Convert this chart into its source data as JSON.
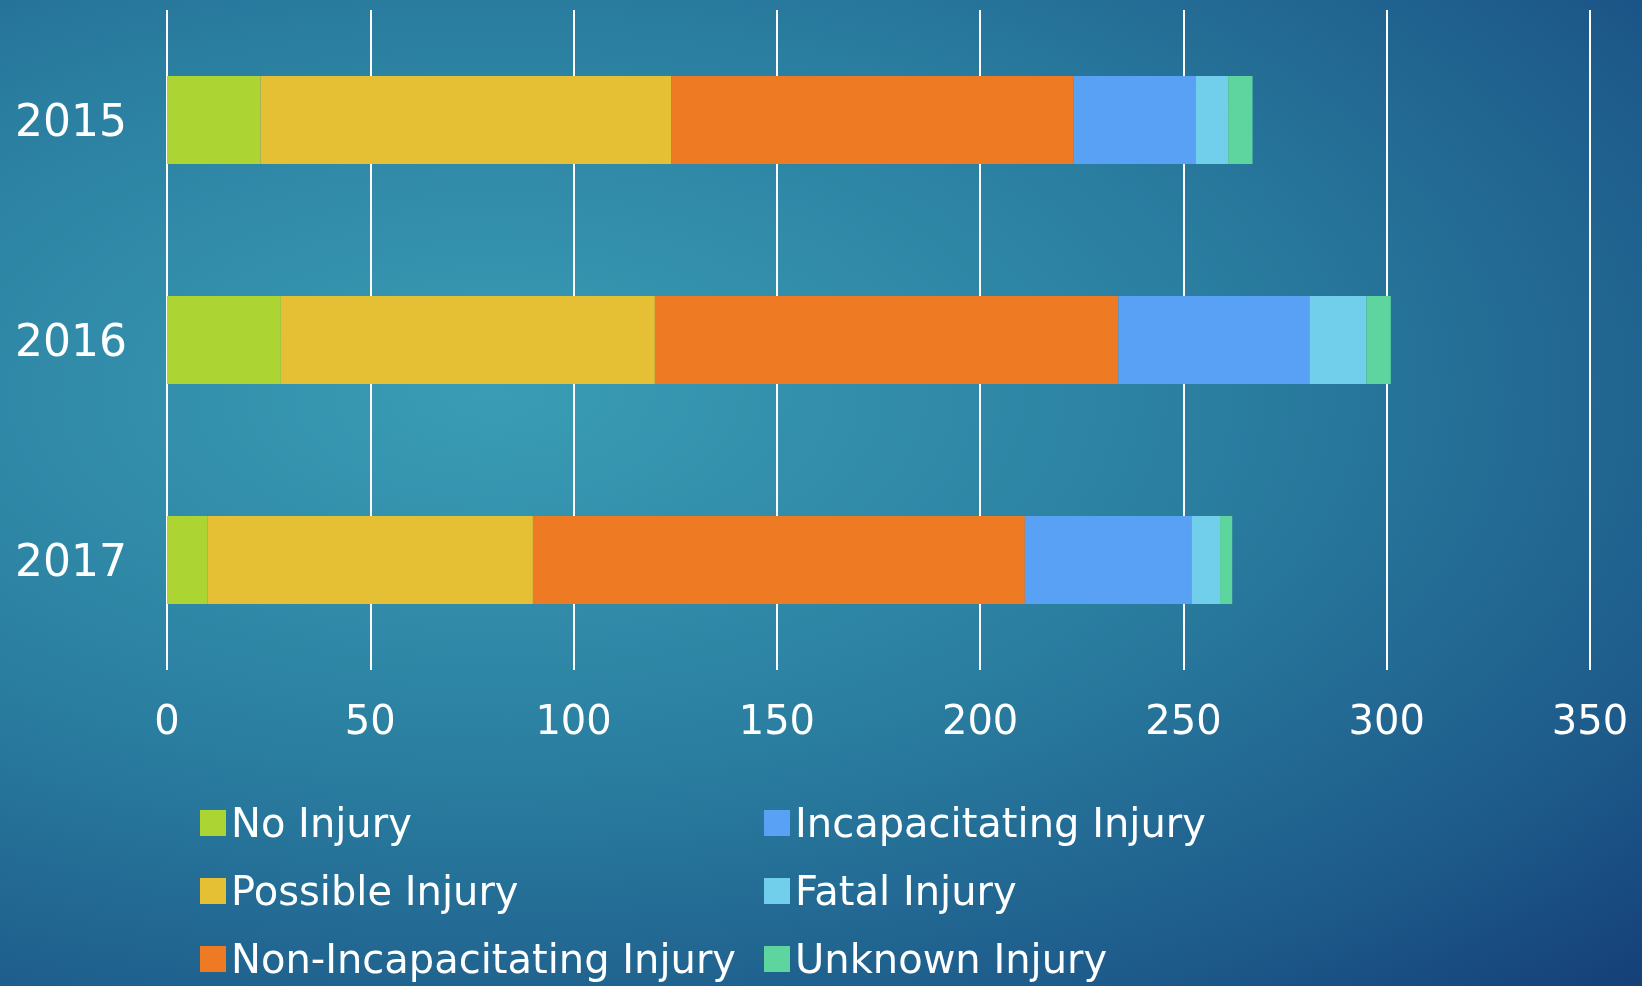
{
  "chart_data": {
    "type": "bar",
    "orientation": "horizontal",
    "stacked": true,
    "categories": [
      "2015",
      "2016",
      "2017"
    ],
    "series": [
      {
        "name": "No Injury",
        "color": "#acd433",
        "values": [
          23,
          28,
          10
        ]
      },
      {
        "name": "Possible Injury",
        "color": "#e5c035",
        "values": [
          101,
          92,
          80
        ]
      },
      {
        "name": "Non-Incapacitating Injury",
        "color": "#ee7b24",
        "values": [
          99,
          114,
          121
        ]
      },
      {
        "name": "Incapacitating Injury",
        "color": "#58a1f5",
        "values": [
          30,
          47,
          41
        ]
      },
      {
        "name": "Fatal Injury",
        "color": "#72cfec",
        "values": [
          8,
          14,
          7
        ]
      },
      {
        "name": "Unknown Injury",
        "color": "#5ed59e",
        "values": [
          6,
          6,
          3
        ]
      }
    ],
    "xlim": [
      0,
      350
    ],
    "xticks": [
      0,
      50,
      100,
      150,
      200,
      250,
      300,
      350
    ],
    "grid": "x",
    "legend": "bottom"
  }
}
